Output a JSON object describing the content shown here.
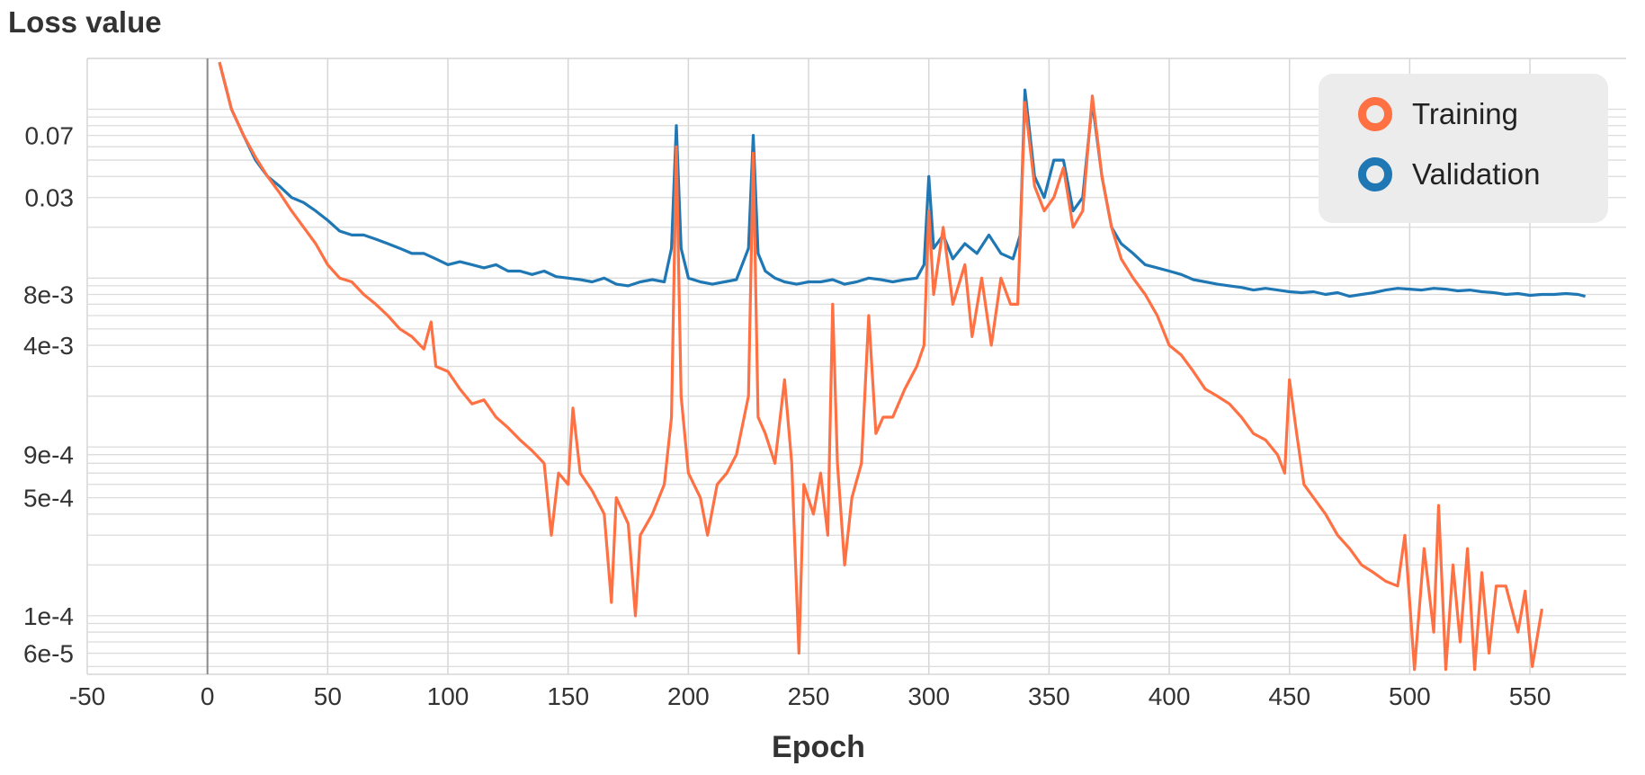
{
  "chart_data": {
    "type": "line",
    "ylabel": "Loss value",
    "xlabel": "Epoch",
    "yscale": "log",
    "xlim": [
      -50,
      590
    ],
    "ylim": [
      4.5e-05,
      0.2
    ],
    "x_ticks": [
      -50,
      0,
      50,
      100,
      150,
      200,
      250,
      300,
      350,
      400,
      450,
      500,
      550
    ],
    "y_ticks": [
      {
        "value": 0.07,
        "label": "0.07"
      },
      {
        "value": 0.03,
        "label": "0.03"
      },
      {
        "value": 0.008,
        "label": "8e-3"
      },
      {
        "value": 0.004,
        "label": "4e-3"
      },
      {
        "value": 0.0009,
        "label": "9e-4"
      },
      {
        "value": 0.0005,
        "label": "5e-4"
      },
      {
        "value": 0.0001,
        "label": "1e-4"
      },
      {
        "value": 6e-05,
        "label": "6e-5"
      }
    ],
    "grid": true,
    "legend_position": "top-right",
    "series": [
      {
        "name": "Training",
        "color": "#ff7043",
        "points": [
          [
            5,
            0.19
          ],
          [
            10,
            0.1
          ],
          [
            15,
            0.07
          ],
          [
            20,
            0.052
          ],
          [
            25,
            0.04
          ],
          [
            30,
            0.032
          ],
          [
            35,
            0.025
          ],
          [
            40,
            0.02
          ],
          [
            45,
            0.016
          ],
          [
            50,
            0.012
          ],
          [
            55,
            0.01
          ],
          [
            60,
            0.0095
          ],
          [
            65,
            0.008
          ],
          [
            70,
            0.007
          ],
          [
            75,
            0.006
          ],
          [
            80,
            0.005
          ],
          [
            85,
            0.0045
          ],
          [
            90,
            0.0038
          ],
          [
            93,
            0.0055
          ],
          [
            95,
            0.003
          ],
          [
            100,
            0.0028
          ],
          [
            105,
            0.0022
          ],
          [
            110,
            0.0018
          ],
          [
            115,
            0.0019
          ],
          [
            120,
            0.0015
          ],
          [
            125,
            0.0013
          ],
          [
            130,
            0.0011
          ],
          [
            135,
            0.00095
          ],
          [
            140,
            0.0008
          ],
          [
            143,
            0.0003
          ],
          [
            146,
            0.0007
          ],
          [
            150,
            0.0006
          ],
          [
            152,
            0.0017
          ],
          [
            155,
            0.0007
          ],
          [
            160,
            0.00055
          ],
          [
            165,
            0.0004
          ],
          [
            168,
            0.00012
          ],
          [
            170,
            0.0005
          ],
          [
            175,
            0.00035
          ],
          [
            178,
            0.0001
          ],
          [
            180,
            0.0003
          ],
          [
            185,
            0.0004
          ],
          [
            190,
            0.0006
          ],
          [
            193,
            0.0015
          ],
          [
            195,
            0.06
          ],
          [
            197,
            0.002
          ],
          [
            200,
            0.0007
          ],
          [
            205,
            0.0005
          ],
          [
            208,
            0.0003
          ],
          [
            212,
            0.0006
          ],
          [
            216,
            0.0007
          ],
          [
            220,
            0.0009
          ],
          [
            225,
            0.002
          ],
          [
            227,
            0.055
          ],
          [
            229,
            0.0015
          ],
          [
            232,
            0.0012
          ],
          [
            236,
            0.0008
          ],
          [
            240,
            0.0025
          ],
          [
            243,
            0.0008
          ],
          [
            246,
            6e-05
          ],
          [
            248,
            0.0006
          ],
          [
            252,
            0.0004
          ],
          [
            255,
            0.0007
          ],
          [
            258,
            0.0003
          ],
          [
            260,
            0.007
          ],
          [
            262,
            0.0008
          ],
          [
            265,
            0.0002
          ],
          [
            268,
            0.0005
          ],
          [
            272,
            0.0008
          ],
          [
            275,
            0.006
          ],
          [
            278,
            0.0012
          ],
          [
            281,
            0.0015
          ],
          [
            285,
            0.0015
          ],
          [
            290,
            0.0022
          ],
          [
            295,
            0.003
          ],
          [
            298,
            0.004
          ],
          [
            300,
            0.025
          ],
          [
            302,
            0.008
          ],
          [
            306,
            0.02
          ],
          [
            310,
            0.007
          ],
          [
            315,
            0.012
          ],
          [
            318,
            0.0045
          ],
          [
            322,
            0.01
          ],
          [
            326,
            0.004
          ],
          [
            330,
            0.01
          ],
          [
            334,
            0.007
          ],
          [
            337,
            0.007
          ],
          [
            340,
            0.11
          ],
          [
            344,
            0.035
          ],
          [
            348,
            0.025
          ],
          [
            352,
            0.03
          ],
          [
            356,
            0.045
          ],
          [
            360,
            0.02
          ],
          [
            364,
            0.025
          ],
          [
            368,
            0.12
          ],
          [
            372,
            0.04
          ],
          [
            376,
            0.02
          ],
          [
            380,
            0.013
          ],
          [
            385,
            0.01
          ],
          [
            390,
            0.008
          ],
          [
            395,
            0.006
          ],
          [
            400,
            0.004
          ],
          [
            405,
            0.0035
          ],
          [
            410,
            0.0028
          ],
          [
            415,
            0.0022
          ],
          [
            420,
            0.002
          ],
          [
            425,
            0.0018
          ],
          [
            430,
            0.0015
          ],
          [
            435,
            0.0012
          ],
          [
            440,
            0.0011
          ],
          [
            445,
            0.0009
          ],
          [
            448,
            0.0007
          ],
          [
            450,
            0.0025
          ],
          [
            453,
            0.0012
          ],
          [
            456,
            0.0006
          ],
          [
            460,
            0.0005
          ],
          [
            465,
            0.0004
          ],
          [
            470,
            0.0003
          ],
          [
            475,
            0.00025
          ],
          [
            480,
            0.0002
          ],
          [
            485,
            0.00018
          ],
          [
            490,
            0.00016
          ],
          [
            495,
            0.00015
          ],
          [
            498,
            0.0003
          ],
          [
            500,
            0.00012
          ],
          [
            502,
            4.8e-05
          ],
          [
            506,
            0.00025
          ],
          [
            510,
            8e-05
          ],
          [
            512,
            0.00045
          ],
          [
            515,
            4.8e-05
          ],
          [
            518,
            0.0002
          ],
          [
            521,
            7e-05
          ],
          [
            524,
            0.00025
          ],
          [
            527,
            4.8e-05
          ],
          [
            530,
            0.00018
          ],
          [
            533,
            6e-05
          ],
          [
            536,
            0.00015
          ],
          [
            540,
            0.00015
          ],
          [
            545,
            8e-05
          ],
          [
            548,
            0.00014
          ],
          [
            551,
            5e-05
          ],
          [
            555,
            0.00011
          ]
        ]
      },
      {
        "name": "Validation",
        "color": "#1f77b4",
        "points": [
          [
            5,
            0.19
          ],
          [
            10,
            0.1
          ],
          [
            15,
            0.07
          ],
          [
            20,
            0.05
          ],
          [
            25,
            0.04
          ],
          [
            30,
            0.035
          ],
          [
            35,
            0.03
          ],
          [
            40,
            0.028
          ],
          [
            45,
            0.025
          ],
          [
            50,
            0.022
          ],
          [
            55,
            0.019
          ],
          [
            60,
            0.018
          ],
          [
            65,
            0.018
          ],
          [
            70,
            0.017
          ],
          [
            75,
            0.016
          ],
          [
            80,
            0.015
          ],
          [
            85,
            0.014
          ],
          [
            90,
            0.014
          ],
          [
            95,
            0.013
          ],
          [
            100,
            0.012
          ],
          [
            105,
            0.0125
          ],
          [
            110,
            0.012
          ],
          [
            115,
            0.0115
          ],
          [
            120,
            0.012
          ],
          [
            125,
            0.011
          ],
          [
            130,
            0.011
          ],
          [
            135,
            0.0105
          ],
          [
            140,
            0.011
          ],
          [
            145,
            0.0102
          ],
          [
            150,
            0.01
          ],
          [
            155,
            0.0098
          ],
          [
            160,
            0.0095
          ],
          [
            165,
            0.01
          ],
          [
            170,
            0.0092
          ],
          [
            175,
            0.009
          ],
          [
            180,
            0.0095
          ],
          [
            185,
            0.0098
          ],
          [
            190,
            0.0095
          ],
          [
            193,
            0.015
          ],
          [
            195,
            0.08
          ],
          [
            197,
            0.015
          ],
          [
            200,
            0.01
          ],
          [
            205,
            0.0095
          ],
          [
            210,
            0.0092
          ],
          [
            215,
            0.0095
          ],
          [
            220,
            0.0098
          ],
          [
            225,
            0.015
          ],
          [
            227,
            0.07
          ],
          [
            229,
            0.014
          ],
          [
            232,
            0.011
          ],
          [
            236,
            0.01
          ],
          [
            240,
            0.0095
          ],
          [
            245,
            0.0092
          ],
          [
            250,
            0.0095
          ],
          [
            255,
            0.0095
          ],
          [
            260,
            0.0098
          ],
          [
            265,
            0.0092
          ],
          [
            270,
            0.0095
          ],
          [
            275,
            0.01
          ],
          [
            280,
            0.0098
          ],
          [
            285,
            0.0095
          ],
          [
            290,
            0.0098
          ],
          [
            295,
            0.01
          ],
          [
            298,
            0.012
          ],
          [
            300,
            0.04
          ],
          [
            302,
            0.015
          ],
          [
            306,
            0.018
          ],
          [
            310,
            0.013
          ],
          [
            315,
            0.016
          ],
          [
            320,
            0.014
          ],
          [
            325,
            0.018
          ],
          [
            330,
            0.014
          ],
          [
            335,
            0.013
          ],
          [
            338,
            0.018
          ],
          [
            340,
            0.13
          ],
          [
            344,
            0.04
          ],
          [
            348,
            0.03
          ],
          [
            352,
            0.05
          ],
          [
            356,
            0.05
          ],
          [
            360,
            0.025
          ],
          [
            364,
            0.03
          ],
          [
            368,
            0.11
          ],
          [
            372,
            0.04
          ],
          [
            376,
            0.02
          ],
          [
            380,
            0.016
          ],
          [
            385,
            0.014
          ],
          [
            390,
            0.012
          ],
          [
            395,
            0.0115
          ],
          [
            400,
            0.011
          ],
          [
            405,
            0.0105
          ],
          [
            410,
            0.0098
          ],
          [
            415,
            0.0095
          ],
          [
            420,
            0.0092
          ],
          [
            425,
            0.009
          ],
          [
            430,
            0.0088
          ],
          [
            435,
            0.0085
          ],
          [
            440,
            0.0087
          ],
          [
            445,
            0.0085
          ],
          [
            450,
            0.0083
          ],
          [
            455,
            0.0082
          ],
          [
            460,
            0.0083
          ],
          [
            465,
            0.008
          ],
          [
            470,
            0.0082
          ],
          [
            475,
            0.0078
          ],
          [
            480,
            0.008
          ],
          [
            485,
            0.0082
          ],
          [
            490,
            0.0085
          ],
          [
            495,
            0.0087
          ],
          [
            500,
            0.0086
          ],
          [
            505,
            0.0085
          ],
          [
            510,
            0.0087
          ],
          [
            515,
            0.0086
          ],
          [
            520,
            0.0084
          ],
          [
            525,
            0.0085
          ],
          [
            530,
            0.0083
          ],
          [
            535,
            0.0082
          ],
          [
            540,
            0.008
          ],
          [
            545,
            0.0081
          ],
          [
            550,
            0.0079
          ],
          [
            555,
            0.008
          ],
          [
            560,
            0.008
          ],
          [
            565,
            0.0081
          ],
          [
            570,
            0.008
          ],
          [
            573,
            0.0078
          ]
        ]
      }
    ]
  }
}
